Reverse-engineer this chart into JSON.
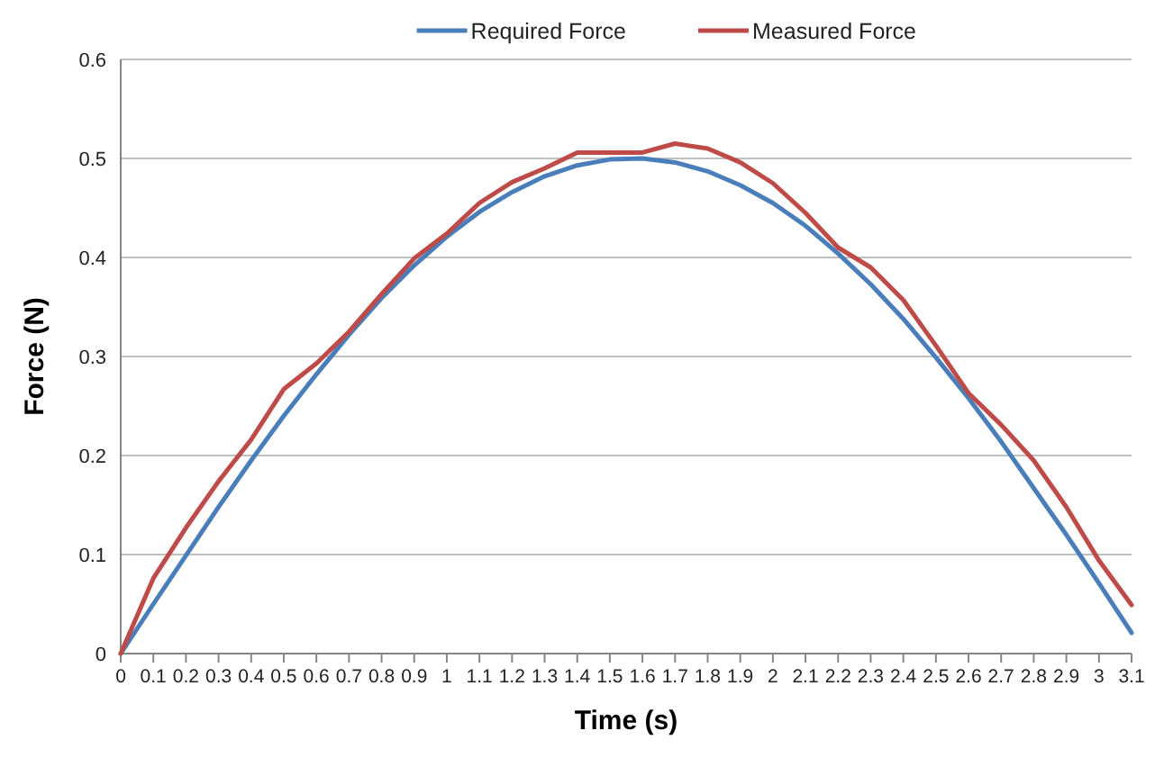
{
  "chart_data": {
    "type": "line",
    "xlabel": "Time (s)",
    "ylabel": "Force (N)",
    "x": [
      0,
      0.1,
      0.2,
      0.3,
      0.4,
      0.5,
      0.6,
      0.7,
      0.8,
      0.9,
      1,
      1.1,
      1.2,
      1.3,
      1.4,
      1.5,
      1.6,
      1.7,
      1.8,
      1.9,
      2,
      2.1,
      2.2,
      2.3,
      2.4,
      2.5,
      2.6,
      2.7,
      2.8,
      2.9,
      3,
      3.1
    ],
    "xlim": [
      0,
      3.1
    ],
    "xticks": [
      0,
      0.1,
      0.2,
      0.3,
      0.4,
      0.5,
      0.6,
      0.7,
      0.8,
      0.9,
      1,
      1.1,
      1.2,
      1.3,
      1.4,
      1.5,
      1.6,
      1.7,
      1.8,
      1.9,
      2,
      2.1,
      2.2,
      2.3,
      2.4,
      2.5,
      2.6,
      2.7,
      2.8,
      2.9,
      3,
      3.1
    ],
    "ylim": [
      0,
      0.6
    ],
    "yticks": [
      0,
      0.1,
      0.2,
      0.3,
      0.4,
      0.5,
      0.6
    ],
    "grid": "y",
    "legend": "top",
    "line_style": "solid",
    "marker": "none",
    "series": [
      {
        "name": "Required Force",
        "color": "#4a7ebb",
        "values": [
          0,
          0.05,
          0.099,
          0.148,
          0.195,
          0.24,
          0.282,
          0.322,
          0.359,
          0.392,
          0.421,
          0.446,
          0.466,
          0.482,
          0.493,
          0.499,
          0.5,
          0.496,
          0.487,
          0.473,
          0.455,
          0.432,
          0.404,
          0.373,
          0.338,
          0.299,
          0.258,
          0.214,
          0.167,
          0.12,
          0.071,
          0.021
        ]
      },
      {
        "name": "Measured Force",
        "color": "#be4b48",
        "values": [
          0,
          0.076,
          0.127,
          0.174,
          0.216,
          0.267,
          0.293,
          0.325,
          0.363,
          0.399,
          0.424,
          0.455,
          0.476,
          0.49,
          0.506,
          0.506,
          0.506,
          0.515,
          0.51,
          0.496,
          0.475,
          0.445,
          0.41,
          0.39,
          0.357,
          0.311,
          0.263,
          0.231,
          0.195,
          0.148,
          0.094,
          0.049
        ]
      }
    ]
  }
}
